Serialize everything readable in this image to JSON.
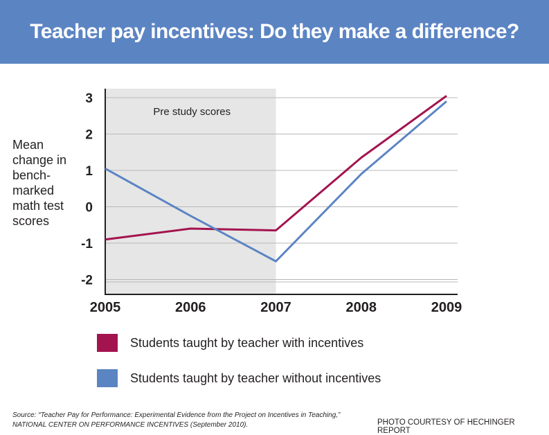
{
  "header": {
    "title": "Teacher pay incentives: Do they make a difference?"
  },
  "colors": {
    "banner": "#5b84c3",
    "incentives": "#a3144f",
    "no_incentives": "#5b84c3",
    "shade": "#e6e6e6"
  },
  "chart_data": {
    "type": "line",
    "title": "Teacher pay incentives: Do they make a difference?",
    "ylabel": "Mean change in bench-marked math test scores",
    "xlabel": "",
    "x": [
      "2005",
      "2006",
      "2007",
      "2008",
      "2009"
    ],
    "ylim": [
      -2.5,
      3.2
    ],
    "yticks": [
      "3",
      "2",
      "1",
      "0",
      "-1",
      "-2"
    ],
    "grid": true,
    "shaded_region": {
      "from": "2005",
      "to": "2007",
      "label": "Pre study scores"
    },
    "series": [
      {
        "name": "Students taught by teacher with incentives",
        "values": [
          -0.9,
          -0.6,
          -0.65,
          1.35,
          3.05
        ]
      },
      {
        "name": "Students taught by teacher without incentives",
        "values": [
          1.05,
          -0.25,
          -1.5,
          0.9,
          2.9
        ]
      }
    ],
    "legend_position": "bottom"
  },
  "labels": {
    "ylabel_lines": [
      "Mean",
      "change in",
      "bench-",
      "marked",
      "math test",
      "scores"
    ]
  },
  "footer": {
    "source_line1": "Source:  “Teacher Pay for Performance: Experimental Evidence from the Project on Incentives in Teaching,”",
    "source_line2": "NATIONAL CENTER ON PERFORMANCE INCENTIVES (September 2010).",
    "credit": "PHOTO COURTESY OF HECHINGER REPORT"
  }
}
